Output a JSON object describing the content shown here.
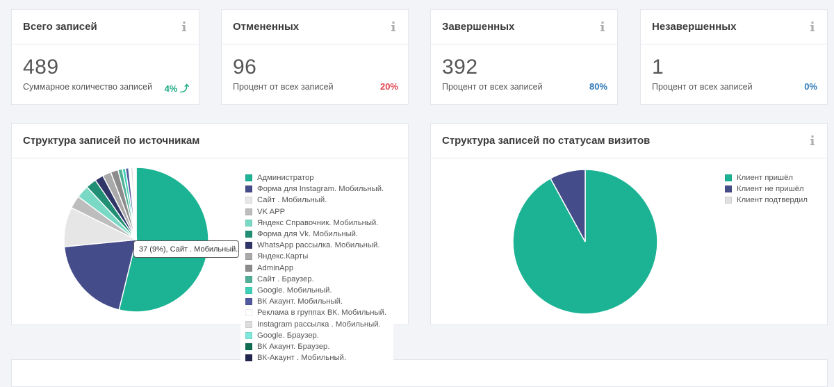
{
  "stats": [
    {
      "title": "Всего записей",
      "value": "489",
      "subtitle": "Суммарное количество записей",
      "pct": "4%",
      "pct_color": "#1aaa82",
      "arrow": "⤴"
    },
    {
      "title": "Отмененных",
      "value": "96",
      "subtitle": "Процент от всех записей",
      "pct": "20%",
      "pct_color": "#e0434f",
      "arrow": ""
    },
    {
      "title": "Завершенных",
      "value": "392",
      "subtitle": "Процент от всех записей",
      "pct": "80%",
      "pct_color": "#2f79b9",
      "arrow": ""
    },
    {
      "title": "Незавершенных",
      "value": "1",
      "subtitle": "Процент от всех записей",
      "pct": "0%",
      "pct_color": "#2f79b9",
      "arrow": ""
    }
  ],
  "panels": {
    "sources_title": "Структура записей по источникам",
    "statuses_title": "Структура записей по статусам визитов"
  },
  "tooltip": "37 (9%), Сайт . Мобильный.",
  "chart_data": [
    {
      "type": "pie",
      "title": "Структура записей по источникам",
      "categories": [
        "Администратор",
        "Форма для Instagram. Мобильный.",
        "Сайт . Мобильный.",
        "VK APP",
        "Яндекс Справочник. Мобильный.",
        "Форма для Vk. Мобильный.",
        "WhatsApp рассылка. Мобильный.",
        "Яндекс.Карты",
        "AdminApp",
        "Сайт . Браузер.",
        "Google. Мобильный.",
        "ВК Акаунт. Мобильный.",
        "Реклама в группах ВК. Мобильный.",
        "Instagram рассылка . Мобильный.",
        "Google. Браузер.",
        "ВК Акаунт. Браузер.",
        "ВК-Акаунт . Мобильный."
      ],
      "values": [
        225,
        82,
        37,
        12,
        12,
        10,
        8,
        8,
        7,
        4,
        3,
        3,
        2,
        2,
        1,
        1,
        1
      ],
      "colors": [
        "#1bb394",
        "#454c8a",
        "#e6e6e6",
        "#bdbdbd",
        "#7ad9c4",
        "#208f75",
        "#2f3567",
        "#a9a9a9",
        "#8c8c8c",
        "#4fae95",
        "#3fd1b7",
        "#51599f",
        "#ffffff",
        "#dddddd",
        "#7fe8da",
        "#0f6b52",
        "#22264f"
      ]
    },
    {
      "type": "pie",
      "title": "Структура записей по статусам визитов",
      "categories": [
        "Клиент пришёл",
        "Клиент не пришёл",
        "Клиент подтвердил"
      ],
      "values": [
        450,
        39,
        0
      ],
      "colors": [
        "#1bb394",
        "#454c8a",
        "#e0e0e0"
      ]
    }
  ]
}
